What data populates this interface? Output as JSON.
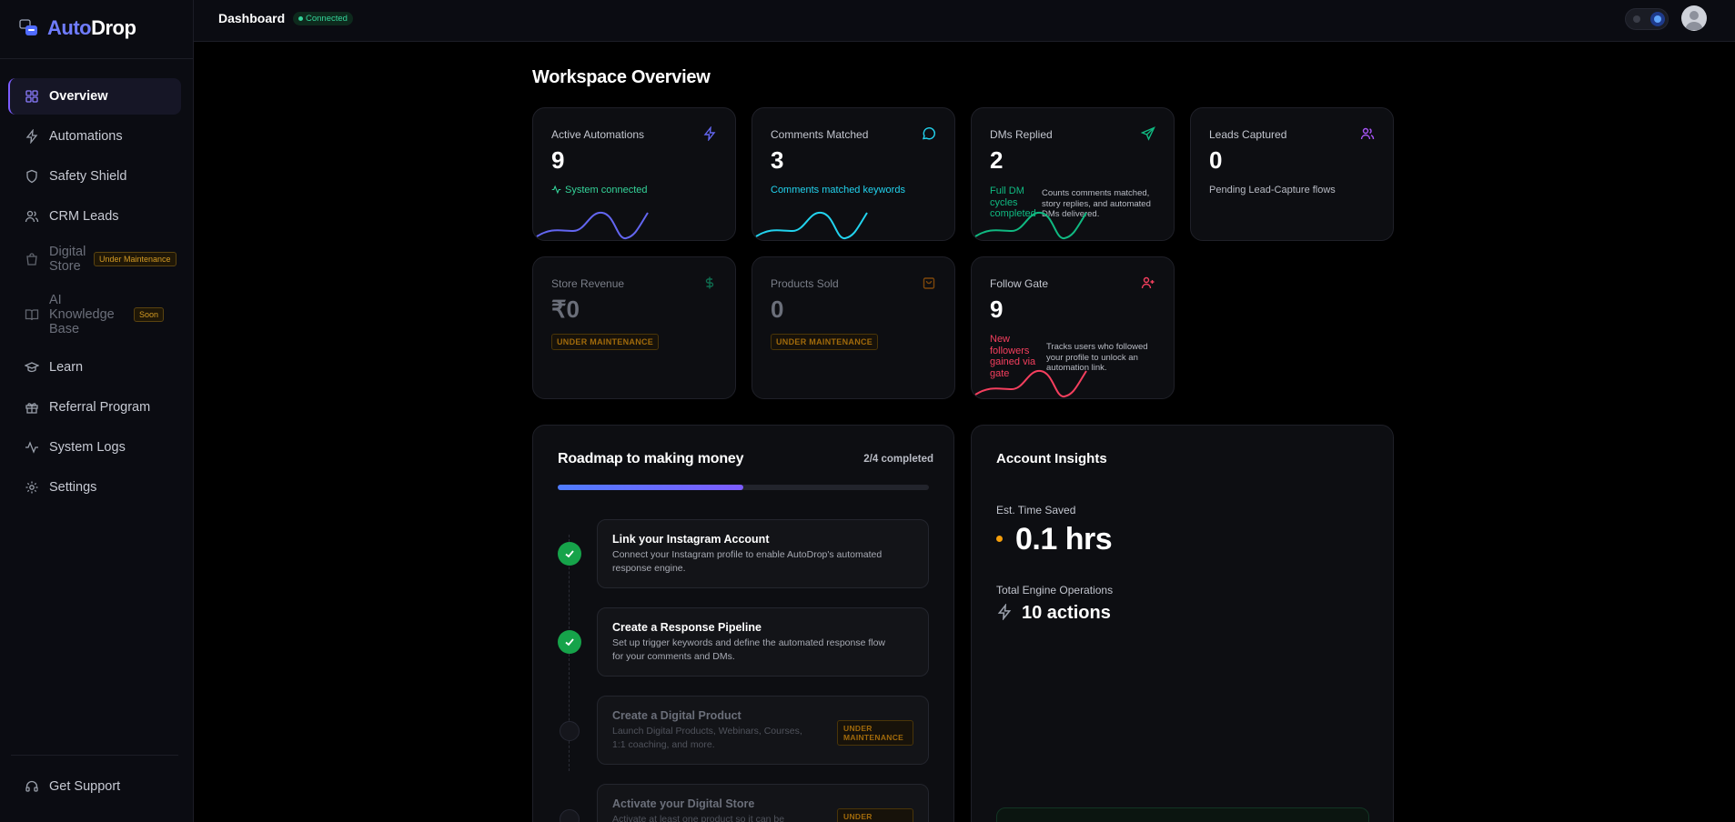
{
  "brand": {
    "part1": "Auto",
    "part2": "Drop"
  },
  "topbar": {
    "title": "Dashboard",
    "status": "Connected"
  },
  "sidebar": {
    "items": [
      {
        "label": "Overview",
        "icon": "grid-icon",
        "active": true
      },
      {
        "label": "Automations",
        "icon": "lightning-icon"
      },
      {
        "label": "Safety Shield",
        "icon": "shield-icon"
      },
      {
        "label": "CRM Leads",
        "icon": "users-icon"
      },
      {
        "label": "Digital Store",
        "icon": "shopping-bag-icon",
        "badge": "Under Maintenance"
      },
      {
        "label": "AI Knowledge Base",
        "icon": "book-icon",
        "badge": "Soon"
      },
      {
        "label": "Learn",
        "icon": "graduation-cap-icon"
      },
      {
        "label": "Referral Program",
        "icon": "gift-icon"
      },
      {
        "label": "System Logs",
        "icon": "activity-icon"
      },
      {
        "label": "Settings",
        "icon": "gear-icon"
      }
    ],
    "support": {
      "label": "Get Support",
      "icon": "headset-icon"
    }
  },
  "main": {
    "title": "Workspace Overview",
    "cards": [
      {
        "label": "Active Automations",
        "value": "9",
        "sub": "System connected",
        "icon": "lightning-icon",
        "accent": "#6366f1",
        "subColor": "#34d399"
      },
      {
        "label": "Comments Matched",
        "value": "3",
        "sub": "Comments matched keywords",
        "icon": "message-icon",
        "accent": "#22d3ee",
        "subColor": "#22d3ee"
      },
      {
        "label": "DMs Replied",
        "value": "2",
        "sub": "Full DM cycles completed",
        "note": "Counts comments matched, story replies, and automated DMs delivered.",
        "icon": "send-icon",
        "accent": "#10b981",
        "subColor": "#10b981"
      },
      {
        "label": "Leads Captured",
        "value": "0",
        "sub": "Pending Lead-Capture flows",
        "icon": "users-icon",
        "accent": "#a855f7",
        "subColor": "#b9bcc5"
      },
      {
        "label": "Store Revenue",
        "value": "₹0",
        "tag": "UNDER MAINTENANCE",
        "icon": "dollar-icon",
        "accent": "#10b981"
      },
      {
        "label": "Products Sold",
        "value": "0",
        "tag": "UNDER MAINTENANCE",
        "icon": "shopping-bag-icon",
        "accent": "#d97706"
      },
      {
        "label": "Follow Gate",
        "value": "9",
        "sub": "New followers gained via gate",
        "note": "Tracks users who followed your profile to unlock an automation link.",
        "icon": "user-plus-icon",
        "accent": "#f43f5e",
        "subColor": "#f43f5e"
      }
    ]
  },
  "roadmap": {
    "title": "Roadmap to making money",
    "completed": "2/4 completed",
    "progress": 0.5,
    "steps": [
      {
        "title": "Link your Instagram Account",
        "desc": "Connect your Instagram profile to enable AutoDrop's automated response engine.",
        "done": true
      },
      {
        "title": "Create a Response Pipeline",
        "desc": "Set up trigger keywords and define the automated response flow for your comments and DMs.",
        "done": true
      },
      {
        "title": "Create a Digital Product",
        "desc": "Launch Digital Products, Webinars, Courses, 1:1 coaching, and more.",
        "done": false,
        "tag": "UNDER MAINTENANCE"
      },
      {
        "title": "Activate your Digital Store",
        "desc": "Activate at least one product so it can be",
        "done": false,
        "tag": "UNDER MAINTENANCE"
      }
    ]
  },
  "insights": {
    "title": "Account Insights",
    "time_label": "Est. Time Saved",
    "time_value": "0.1 hrs",
    "ops_label": "Total Engine Operations",
    "ops_value": "10 actions"
  }
}
